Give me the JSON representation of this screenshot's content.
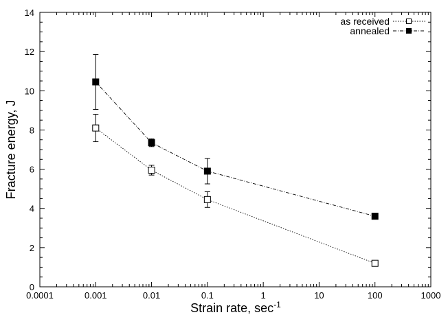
{
  "chart_data": {
    "type": "scatter",
    "xlabel": "Strain rate, sec",
    "xlabel_superscript": "-1",
    "ylabel": "Fracture energy, J",
    "xscale": "log",
    "xlim": [
      0.0001,
      1000
    ],
    "ylim": [
      0,
      14
    ],
    "x_ticks": [
      0.0001,
      0.001,
      0.01,
      0.1,
      1,
      10,
      100,
      1000
    ],
    "x_tick_labels": [
      "0.0001",
      "0.001",
      "0.01",
      "0.1",
      "1",
      "10",
      "100",
      "1000"
    ],
    "y_ticks": [
      0,
      2,
      4,
      6,
      8,
      10,
      12,
      14
    ],
    "y_tick_labels": [
      "0",
      "2",
      "4",
      "6",
      "8",
      "10",
      "12",
      "14"
    ],
    "grid": false,
    "legend_position": "top-right",
    "series": [
      {
        "name": "as received",
        "marker": "open-square",
        "line": "dotted",
        "x": [
          0.001,
          0.01,
          0.1,
          100
        ],
        "y": [
          8.1,
          5.95,
          4.45,
          1.2
        ],
        "err": [
          0.7,
          0.25,
          0.4,
          0.1
        ]
      },
      {
        "name": "annealed",
        "marker": "filled-square",
        "line": "dash-dot",
        "x": [
          0.001,
          0.01,
          0.1,
          100
        ],
        "y": [
          10.45,
          7.35,
          5.9,
          3.6
        ],
        "err": [
          1.4,
          0.2,
          0.65,
          0.15
        ]
      }
    ]
  }
}
